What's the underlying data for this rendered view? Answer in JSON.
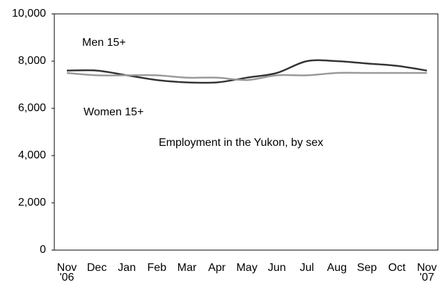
{
  "chart_data": {
    "type": "line",
    "annotation": "Employment in the Yukon, by sex",
    "categories": [
      "Nov '06",
      "Dec",
      "Jan",
      "Feb",
      "Mar",
      "Apr",
      "May",
      "Jun",
      "Jul",
      "Aug",
      "Sep",
      "Oct",
      "Nov '07"
    ],
    "series": [
      {
        "name": "Men 15+",
        "color": "#333333",
        "values": [
          7600,
          7600,
          7400,
          7200,
          7100,
          7100,
          7300,
          7500,
          8000,
          8000,
          7900,
          7800,
          7600
        ]
      },
      {
        "name": "Women 15+",
        "color": "#999999",
        "values": [
          7500,
          7400,
          7400,
          7400,
          7300,
          7300,
          7200,
          7400,
          7400,
          7500,
          7500,
          7500,
          7500
        ]
      }
    ],
    "ylim": [
      0,
      10000
    ],
    "yticks": [
      0,
      {
        "value": 2000,
        "label": "2,000"
      },
      {
        "value": 4000,
        "label": "4,000"
      },
      {
        "value": 6000,
        "label": "6,000"
      },
      {
        "value": 8000,
        "label": "8,000"
      },
      {
        "value": 10000,
        "label": "10,000"
      }
    ]
  }
}
